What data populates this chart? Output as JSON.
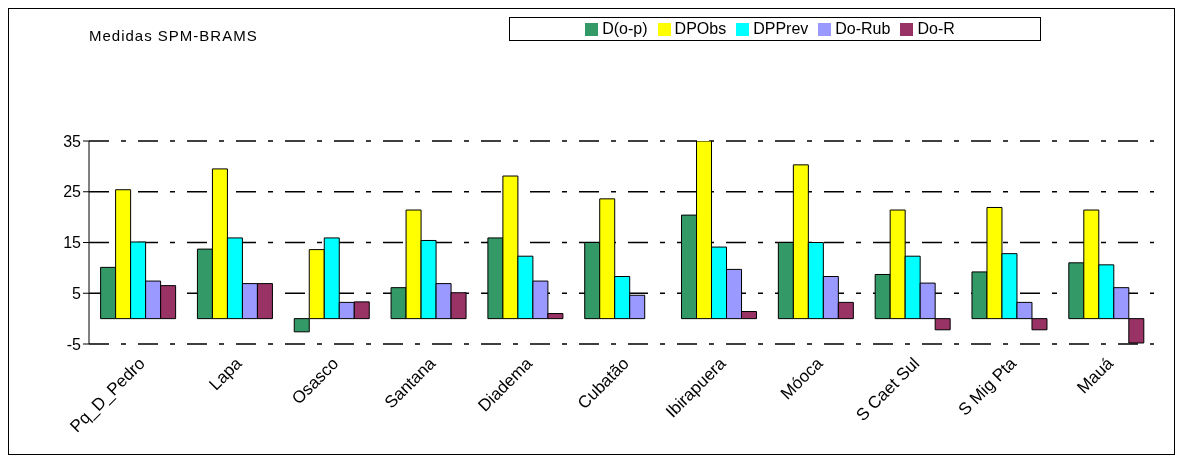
{
  "chart_data": {
    "type": "bar",
    "title": "Medidas SPM-BRAMS",
    "categories": [
      "Pq_D_Pedro",
      "Lapa",
      "Osasco",
      "Santana",
      "Diadema",
      "Cubatão",
      "Ibirapuera",
      "Móoca",
      "S Caet Sul",
      "S Mig Pta",
      "Mauá"
    ],
    "series": [
      {
        "name": "D(o-p)",
        "color": "#339966",
        "values": [
          10.1,
          13.7,
          -2.6,
          6.1,
          15.9,
          15.0,
          20.4,
          15.0,
          8.7,
          9.2,
          11.0
        ]
      },
      {
        "name": "DPObs",
        "color": "#ffff00",
        "values": [
          25.4,
          29.5,
          13.6,
          21.4,
          28.1,
          23.6,
          35.0,
          30.3,
          21.4,
          21.9,
          21.4
        ]
      },
      {
        "name": "DPPrev",
        "color": "#00ffff",
        "values": [
          15.1,
          15.9,
          15.9,
          15.4,
          12.3,
          8.3,
          14.1,
          15.0,
          12.3,
          12.8,
          10.6
        ]
      },
      {
        "name": "Do-Rub",
        "color": "#9999ff",
        "values": [
          7.4,
          6.9,
          3.2,
          6.9,
          7.4,
          4.6,
          9.7,
          8.3,
          7.0,
          3.2,
          6.1
        ]
      },
      {
        "name": "Do-R",
        "color": "#993366",
        "values": [
          6.5,
          6.9,
          3.3,
          5.1,
          1.0,
          0.0,
          1.4,
          3.2,
          -2.2,
          -2.2,
          -4.8
        ]
      }
    ],
    "ylim": [
      -5,
      35
    ],
    "yticks": [
      -5,
      5,
      15,
      25,
      35
    ],
    "grid": "y",
    "legend": "top right"
  }
}
